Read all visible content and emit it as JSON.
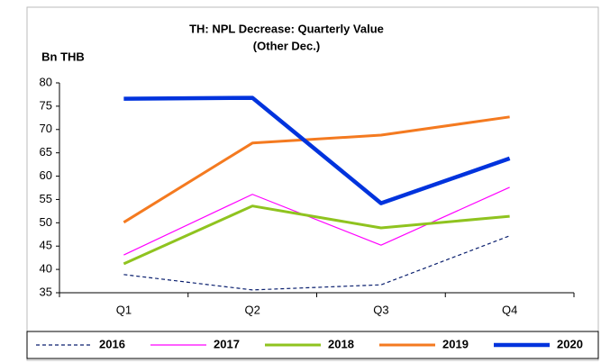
{
  "chart_data": {
    "type": "line",
    "title": "TH: NPL Decrease: Quarterly Value",
    "subtitle": "(Other Dec.)",
    "y_label": "Bn THB",
    "categories": [
      "Q1",
      "Q2",
      "Q3",
      "Q4"
    ],
    "series": [
      {
        "name": "2016",
        "color": "#0a1f6e",
        "dashed": true,
        "values": [
          38.9,
          35.6,
          36.7,
          47.2
        ]
      },
      {
        "name": "2017",
        "color": "#ff00ff",
        "values": [
          43.1,
          56.1,
          45.2,
          57.6
        ]
      },
      {
        "name": "2018",
        "color": "#8fc31f",
        "values": [
          41.2,
          53.6,
          48.9,
          51.4
        ]
      },
      {
        "name": "2019",
        "color": "#f47a20",
        "values": [
          50.1,
          67.1,
          68.8,
          72.7
        ]
      },
      {
        "name": "2020",
        "color": "#0033dd",
        "values": [
          76.6,
          76.8,
          54.2,
          63.8
        ]
      }
    ],
    "ylim": [
      35,
      80
    ],
    "yticks": [
      35,
      40,
      45,
      50,
      55,
      60,
      65,
      70,
      75,
      80
    ],
    "grid": false,
    "legend": "bottom"
  }
}
